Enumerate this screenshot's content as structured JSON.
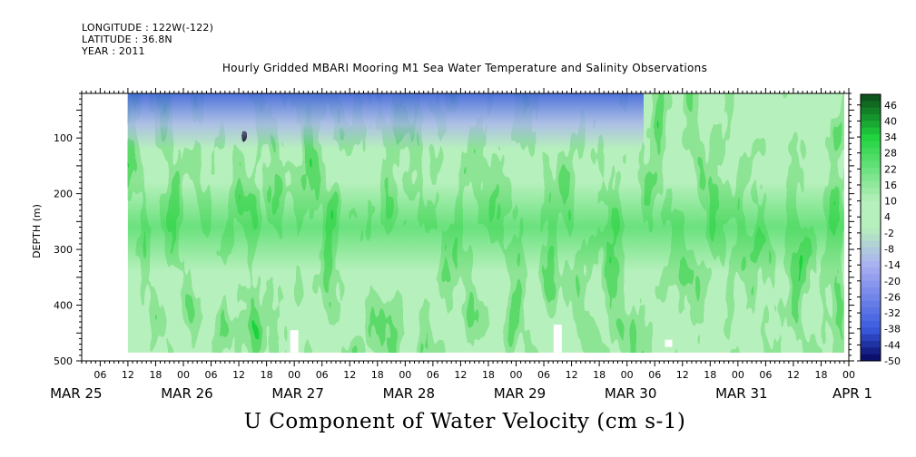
{
  "meta": {
    "longitude": "LONGITUDE : 122W(-122)",
    "latitude": "LATITUDE : 36.8N",
    "year": "YEAR : 2011"
  },
  "chart_data": {
    "type": "heatmap",
    "title": "Hourly Gridded MBARI Mooring M1 Sea Water Temperature and Salinity Observations",
    "caption": "U Component of Water Velocity (cm s-1)",
    "xlabel": "",
    "ylabel": "DEPTH (m)",
    "y_axis": {
      "range": [
        20,
        500
      ],
      "inverted": true,
      "ticks": [
        100,
        200,
        300,
        400,
        500
      ]
    },
    "x_axis": {
      "range": [
        "2011-03-25T02:00",
        "2011-04-01T00:00"
      ],
      "hour_ticks": [
        "06",
        "12",
        "18",
        "00",
        "06",
        "12",
        "18",
        "00",
        "06",
        "12",
        "18",
        "00",
        "06",
        "12",
        "18",
        "00",
        "06",
        "12",
        "18",
        "00",
        "06",
        "12",
        "18",
        "00",
        "06",
        "12",
        "18",
        "00",
        "06",
        "12",
        "18",
        "00"
      ],
      "day_labels": [
        "MAR 25",
        "MAR 26",
        "MAR 27",
        "MAR 28",
        "MAR 29",
        "MAR 30",
        "MAR 31",
        "APR 1"
      ]
    },
    "data_extent": {
      "time_start": "2011-03-25T12:00",
      "time_end": "2011-03-31T23:00",
      "depth_top": 20,
      "depth_bottom": 485
    },
    "colorbar": {
      "levels": [
        46,
        40,
        34,
        28,
        22,
        16,
        10,
        4,
        -2,
        -8,
        -14,
        -20,
        -26,
        -32,
        -38,
        -44,
        -50
      ],
      "min": -50,
      "max": 50,
      "colors": {
        "strong_positive": "#0b4a1a",
        "positive": "#1fd33e",
        "weak_positive": "#b6f0bc",
        "weak_negative": "#aab0f2",
        "negative": "#3a5be0",
        "strong_negative": "#04075f"
      }
    },
    "description_features": {
      "near_surface_negative_band_depth": [
        20,
        120
      ],
      "dominant_positive_core_depth": [
        180,
        340
      ],
      "grid_gaps": [
        {
          "time": "2011-03-27T00:00",
          "depth_from": 445,
          "depth_to": 485
        },
        {
          "time": "2011-03-29T09:00",
          "depth_from": 435,
          "depth_to": 485
        },
        {
          "time": "2011-03-30T09:00",
          "depth_from": 462,
          "depth_to": 475
        }
      ]
    }
  }
}
